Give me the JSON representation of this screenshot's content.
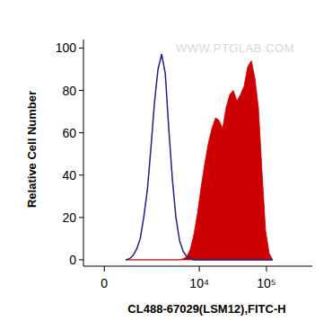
{
  "chart_data": {
    "type": "area",
    "x_label": "CL488-67029(LSM12),FITC-H",
    "y_label": "Relative Cell Number",
    "annotations": [
      "WWW.PTGLAB.COM"
    ],
    "log": "x",
    "grid": false,
    "xlim": [
      -600,
      480000
    ],
    "xticks": [
      0,
      {
        "value": 10000,
        "label": "10⁴"
      },
      {
        "value": 100000,
        "label": "10⁵"
      }
    ],
    "ylim": [
      -3,
      104
    ],
    "yticks": [
      0,
      20,
      40,
      60,
      80,
      100
    ],
    "x": [
      620,
      750,
      890,
      1040,
      1210,
      1390,
      1600,
      1820,
      2080,
      2370,
      2700,
      3070,
      3470,
      3940,
      4460,
      5060,
      5730,
      6490,
      7330,
      8300,
      9390,
      10600,
      12000,
      13600,
      15400,
      17400,
      19600,
      22200,
      25100,
      28400,
      32100,
      36300,
      41000,
      46400,
      52400,
      59400,
      67100,
      75800,
      85700,
      96900,
      109600,
      123900
    ],
    "series": [
      {
        "type": "line",
        "color": "#1f1f8f",
        "values": [
          0,
          0.5,
          2,
          5,
          10,
          20,
          33,
          52,
          74,
          90,
          97,
          88,
          62,
          38,
          20,
          9,
          4,
          1.5,
          0.5,
          0,
          0,
          0,
          0,
          0,
          0,
          0,
          0,
          0,
          0,
          0,
          0,
          0,
          0,
          0,
          0,
          0,
          0,
          0,
          0,
          0,
          0,
          0
        ]
      },
      {
        "type": "area",
        "color": "#cc0000",
        "values": [
          0,
          0,
          0,
          0,
          0,
          0,
          0,
          0,
          0,
          0,
          0,
          0,
          0,
          0,
          0,
          0,
          0.5,
          1.5,
          5,
          12,
          22,
          34,
          45,
          55,
          62,
          67,
          66,
          62,
          72,
          78,
          80,
          75,
          78,
          82,
          91,
          94,
          86,
          72,
          42,
          14,
          3,
          0
        ]
      }
    ]
  }
}
